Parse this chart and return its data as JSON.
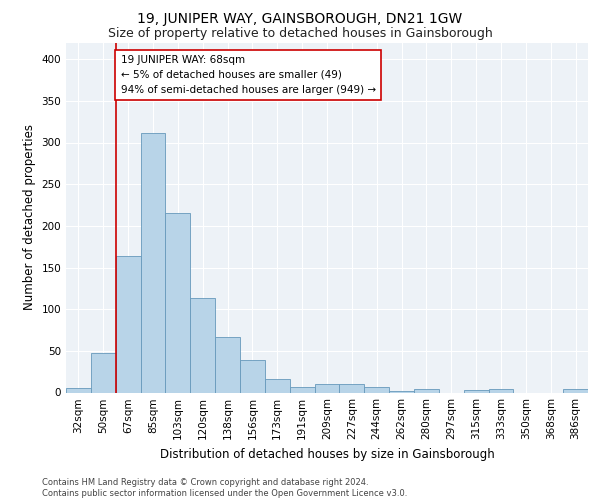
{
  "title": "19, JUNIPER WAY, GAINSBOROUGH, DN21 1GW",
  "subtitle": "Size of property relative to detached houses in Gainsborough",
  "xlabel": "Distribution of detached houses by size in Gainsborough",
  "ylabel": "Number of detached properties",
  "bar_labels": [
    "32sqm",
    "50sqm",
    "67sqm",
    "85sqm",
    "103sqm",
    "120sqm",
    "138sqm",
    "156sqm",
    "173sqm",
    "191sqm",
    "209sqm",
    "227sqm",
    "244sqm",
    "262sqm",
    "280sqm",
    "297sqm",
    "315sqm",
    "333sqm",
    "350sqm",
    "368sqm",
    "386sqm"
  ],
  "bar_values": [
    5,
    47,
    164,
    312,
    215,
    114,
    67,
    39,
    16,
    7,
    10,
    10,
    7,
    2,
    4,
    0,
    3,
    4,
    0,
    0,
    4
  ],
  "bar_color": "#b8d4e8",
  "bar_edge_color": "#6699bb",
  "vline_color": "#cc0000",
  "annotation_text": "19 JUNIPER WAY: 68sqm\n← 5% of detached houses are smaller (49)\n94% of semi-detached houses are larger (949) →",
  "annotation_box_color": "#ffffff",
  "annotation_box_edge": "#cc0000",
  "ylim": [
    0,
    420
  ],
  "yticks": [
    0,
    50,
    100,
    150,
    200,
    250,
    300,
    350,
    400
  ],
  "bg_color": "#edf2f7",
  "footer": "Contains HM Land Registry data © Crown copyright and database right 2024.\nContains public sector information licensed under the Open Government Licence v3.0.",
  "title_fontsize": 10,
  "subtitle_fontsize": 9,
  "xlabel_fontsize": 8.5,
  "ylabel_fontsize": 8.5,
  "tick_fontsize": 7.5,
  "annot_fontsize": 7.5,
  "footer_fontsize": 6
}
